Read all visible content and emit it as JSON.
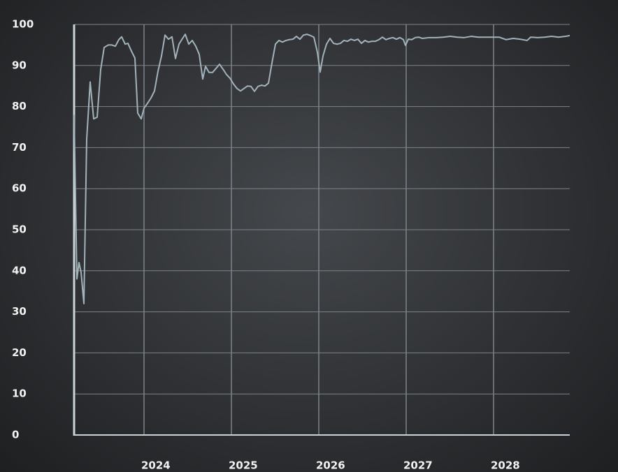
{
  "chart_data": {
    "type": "line",
    "x": [
      2023.2,
      2023.232,
      2023.256,
      2023.28,
      2023.312,
      2023.344,
      2023.384,
      2023.424,
      2023.464,
      2023.504,
      2023.544,
      2023.592,
      2023.632,
      2023.672,
      2023.712,
      2023.744,
      2023.784,
      2023.816,
      2023.856,
      2023.896,
      2023.928,
      2023.968,
      2024,
      2024.04,
      2024.08,
      2024.12,
      2024.16,
      2024.2,
      2024.24,
      2024.28,
      2024.32,
      2024.36,
      2024.4,
      2024.432,
      2024.472,
      2024.512,
      2024.552,
      2024.592,
      2024.632,
      2024.672,
      2024.704,
      2024.744,
      2024.784,
      2024.824,
      2024.864,
      2024.904,
      2024.944,
      2024.984,
      2025.024,
      2025.064,
      2025.104,
      2025.144,
      2025.184,
      2025.224,
      2025.264,
      2025.304,
      2025.344,
      2025.384,
      2025.424,
      2025.464,
      2025.504,
      2025.544,
      2025.584,
      2025.624,
      2025.664,
      2025.704,
      2025.744,
      2025.784,
      2025.824,
      2025.864,
      2025.904,
      2025.944,
      2025.984,
      2026.016,
      2026.048,
      2026.088,
      2026.128,
      2026.168,
      2026.208,
      2026.248,
      2026.288,
      2026.328,
      2026.368,
      2026.408,
      2026.448,
      2026.488,
      2026.528,
      2026.568,
      2026.608,
      2026.648,
      2026.688,
      2026.728,
      2026.768,
      2026.808,
      2026.848,
      2026.888,
      2026.928,
      2026.968,
      2026.992,
      2027.024,
      2027.064,
      2027.104,
      2027.144,
      2027.184,
      2027.264,
      2027.344,
      2027.424,
      2027.504,
      2027.584,
      2027.664,
      2027.744,
      2027.824,
      2027.904,
      2027.984,
      2028.064,
      2028.144,
      2028.224,
      2028.304,
      2028.384,
      2028.424,
      2028.504,
      2028.584,
      2028.664,
      2028.744,
      2028.824,
      2028.872
    ],
    "series": [
      {
        "color": "#a3b3bb",
        "values": [
          78,
          38,
          42,
          39.6,
          32,
          72,
          86,
          77,
          77.4,
          89,
          94.4,
          95,
          95,
          94.7,
          96.3,
          97,
          95.2,
          95.4,
          93.5,
          91.8,
          78.4,
          77,
          79.6,
          80.8,
          82.1,
          83.8,
          88.6,
          92.3,
          97.4,
          96.4,
          97,
          91.7,
          95.2,
          96.3,
          97.6,
          95.2,
          96.1,
          94.7,
          92.7,
          86.7,
          89.8,
          88.3,
          88.3,
          89.3,
          90.3,
          89.1,
          87.8,
          86.9,
          85.5,
          84.4,
          83.8,
          84.4,
          85,
          84.9,
          83.7,
          84.9,
          85.2,
          85,
          85.7,
          90.6,
          95.2,
          96.1,
          95.7,
          96.1,
          96.3,
          96.4,
          97.1,
          96.4,
          97.4,
          97.6,
          97.3,
          96.9,
          93.2,
          88.4,
          92.3,
          95.2,
          96.6,
          95.4,
          95.2,
          95.4,
          96.1,
          95.9,
          96.4,
          96.1,
          96.4,
          95.4,
          96.1,
          95.7,
          95.9,
          95.9,
          96.3,
          96.9,
          96.3,
          96.6,
          96.8,
          96.4,
          96.8,
          96.3,
          94.9,
          96.4,
          96.3,
          96.8,
          96.9,
          96.6,
          96.8,
          96.8,
          96.9,
          97.1,
          96.9,
          96.8,
          97.1,
          96.9,
          96.9,
          96.9,
          96.9,
          96.3,
          96.6,
          96.4,
          96.1,
          96.9,
          96.8,
          96.9,
          97.1,
          96.9,
          97.1,
          97.3
        ]
      }
    ],
    "xlim": [
      2023.2,
      2028.872
    ],
    "xticks": [
      2024,
      2025,
      2026,
      2027,
      2028
    ],
    "ylim": [
      0,
      100
    ],
    "yticks": [
      0,
      10,
      20,
      30,
      40,
      50,
      60,
      70,
      80,
      90,
      100
    ],
    "grid": true
  }
}
